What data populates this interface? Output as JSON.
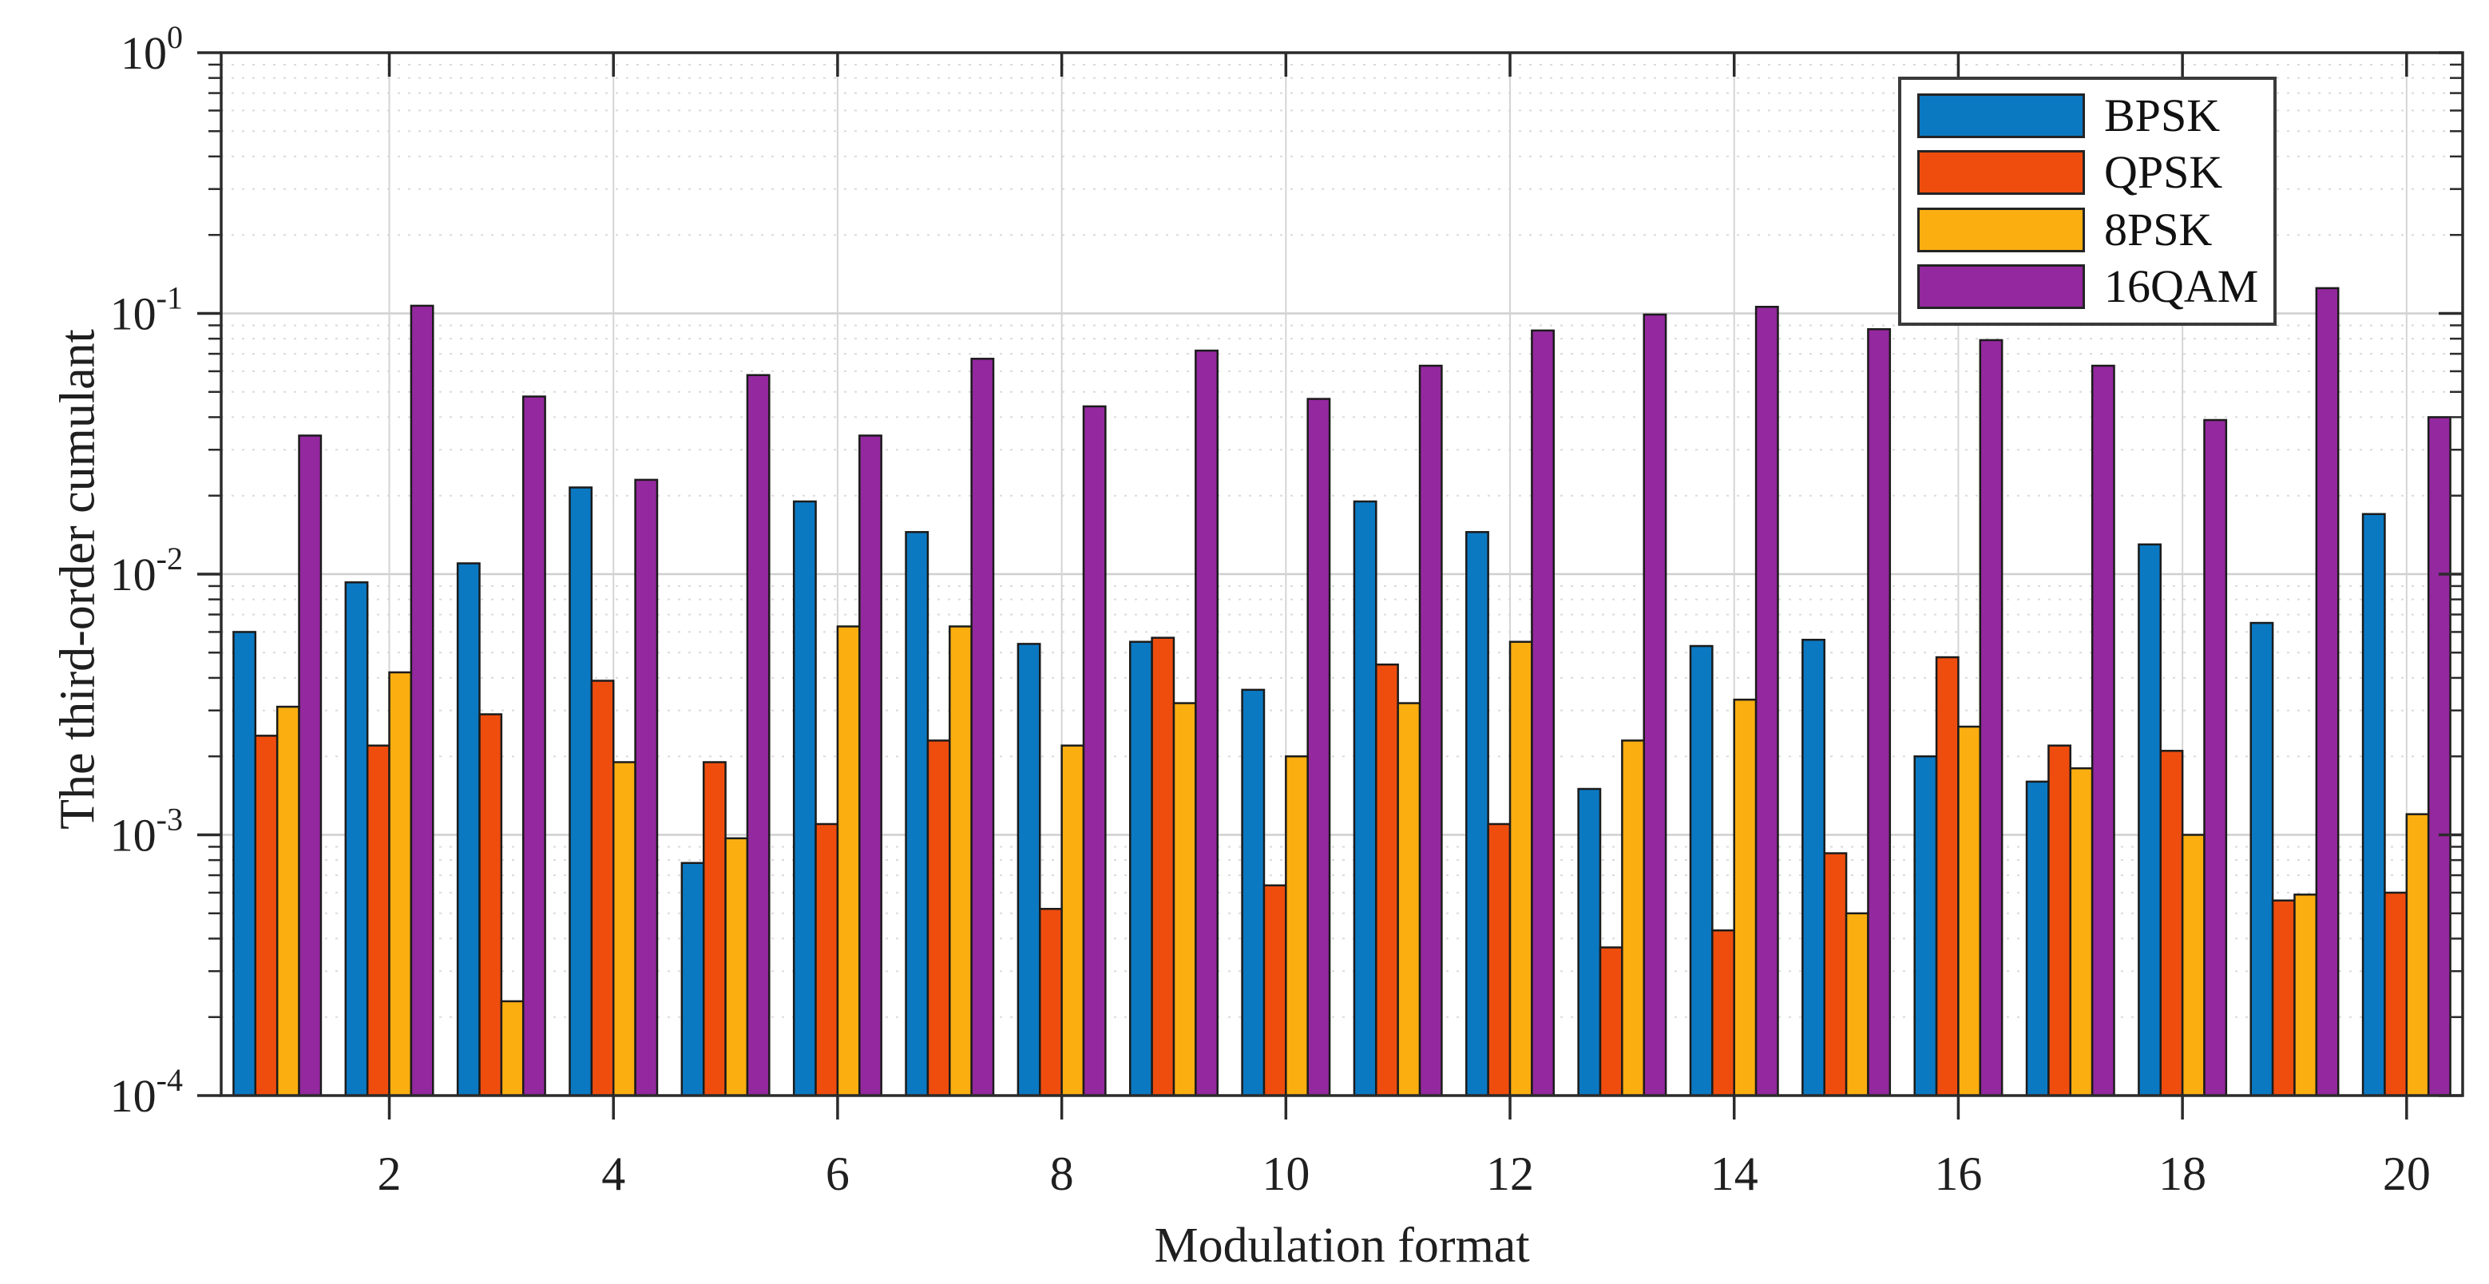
{
  "chart_data": {
    "type": "bar",
    "title": "",
    "xlabel": "Modulation format",
    "ylabel": "The third-order cumulant",
    "x": [
      1,
      2,
      3,
      4,
      5,
      6,
      7,
      8,
      9,
      10,
      11,
      12,
      13,
      14,
      15,
      16,
      17,
      18,
      19,
      20
    ],
    "x_ticks": [
      2,
      4,
      6,
      8,
      10,
      12,
      14,
      16,
      18,
      20
    ],
    "y_scale": "log",
    "ylim": [
      0.0001,
      1
    ],
    "y_tick_exponents": [
      0,
      -1,
      -2,
      -3,
      -4
    ],
    "grid": "on",
    "legend_position": "top-right",
    "series": [
      {
        "name": "BPSK",
        "color": "#0B79C2",
        "values": [
          0.006,
          0.0093,
          0.011,
          0.0215,
          0.00078,
          0.019,
          0.0145,
          0.0054,
          0.0055,
          0.0036,
          0.019,
          0.0145,
          0.0015,
          0.0053,
          0.0056,
          0.002,
          0.0016,
          0.013,
          0.0065,
          0.017
        ]
      },
      {
        "name": "QPSK",
        "color": "#EF4D0E",
        "values": [
          0.0024,
          0.0022,
          0.0029,
          0.0039,
          0.0019,
          0.0011,
          0.0023,
          0.00052,
          0.0057,
          0.00064,
          0.0045,
          0.0011,
          0.00037,
          0.00043,
          0.00085,
          0.0048,
          0.0022,
          0.0021,
          0.00056,
          0.0006
        ]
      },
      {
        "name": "8PSK",
        "color": "#FAAE10",
        "values": [
          0.0031,
          0.0042,
          0.00023,
          0.0019,
          0.00097,
          0.0063,
          0.0063,
          0.0022,
          0.0032,
          0.002,
          0.0032,
          0.0055,
          0.0023,
          0.0033,
          0.0005,
          0.0026,
          0.0018,
          0.001,
          0.00059,
          0.0012
        ]
      },
      {
        "name": "16QAM",
        "color": "#94289E",
        "values": [
          0.034,
          0.107,
          0.048,
          0.023,
          0.058,
          0.034,
          0.067,
          0.044,
          0.072,
          0.047,
          0.063,
          0.086,
          0.099,
          0.106,
          0.087,
          0.079,
          0.063,
          0.039,
          0.125,
          0.04
        ]
      }
    ]
  },
  "axes": {
    "box_color": "#2b2b2b",
    "grid_major_color": "#cfcfcf",
    "grid_minor_color": "#dadada",
    "xgrid_color": "#d4d4d4",
    "bar_edge_color": "#1b1b1b",
    "text_color": "#1f1f1f"
  }
}
